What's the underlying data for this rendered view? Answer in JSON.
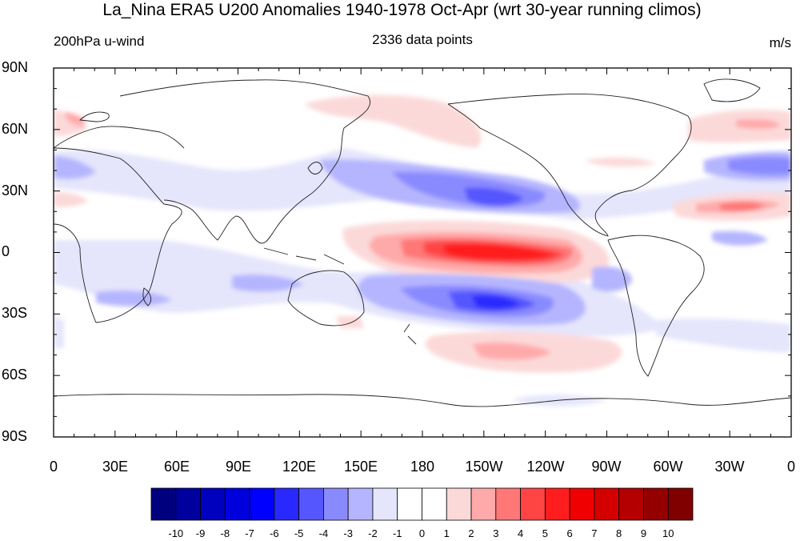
{
  "title": "La_Nina ERA5 U200 Anomalies 1940-1978 Oct-Apr (wrt 30-year running climos)",
  "subtitle_left": "200hPa u-wind",
  "subtitle_center": "2336 data points",
  "subtitle_right": "m/s",
  "lat_labels": [
    "90N",
    "60N",
    "30N",
    "0",
    "30S",
    "60S",
    "90S"
  ],
  "lon_labels": [
    "0",
    "30E",
    "60E",
    "90E",
    "120E",
    "150E",
    "180",
    "150W",
    "120W",
    "90W",
    "60W",
    "30W",
    "0"
  ],
  "colorbar": {
    "labels": [
      "-10",
      "-9",
      "-8",
      "-7",
      "-6",
      "-5",
      "-4",
      "-3",
      "-2",
      "-1",
      "0",
      "1",
      "2",
      "3",
      "4",
      "5",
      "6",
      "7",
      "8",
      "9",
      "10"
    ],
    "colors": [
      "#00007f",
      "#00009f",
      "#0000bf",
      "#0000df",
      "#0000ff",
      "#2929ff",
      "#5656ff",
      "#8a8aff",
      "#b5b5ff",
      "#e5e5fc",
      "#ffffff",
      "#ffffff",
      "#fcd9d9",
      "#ffaaaa",
      "#ff7777",
      "#ff4444",
      "#ff1d1d",
      "#f00000",
      "#d40000",
      "#b40000",
      "#940000",
      "#800000"
    ]
  }
}
